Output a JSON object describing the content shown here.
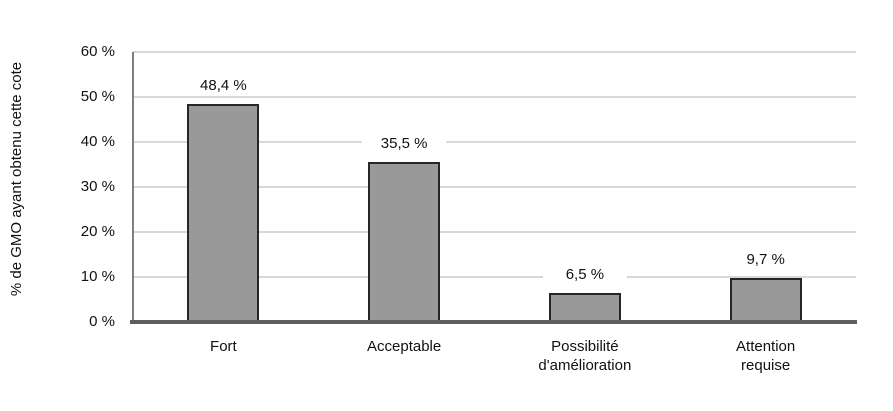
{
  "chart_data": {
    "type": "bar",
    "title": "",
    "xlabel": "",
    "ylabel": "% de GMO ayant obtenu cette cote",
    "categories": [
      "Fort",
      "Acceptable",
      "Possibilité\nd'amélioration",
      "Attention\nrequise"
    ],
    "values": [
      48.4,
      35.5,
      6.5,
      9.7
    ],
    "value_labels": [
      "48,4 %",
      "35,5 %",
      "6,5 %",
      "9,7 %"
    ],
    "ylim": [
      0,
      60
    ],
    "ytick_step": 10,
    "ytick_labels": [
      "0 %",
      "10 %",
      "20 %",
      "30 %",
      "40 %",
      "50 %",
      "60 %"
    ],
    "grid": true,
    "legend": false,
    "colors": {
      "bar_fill": "#999999",
      "bar_border": "#262626",
      "gridline": "#d9d9d9",
      "y_axis_line": "#7f7f7f",
      "baseline": "#5f5f5f",
      "text": "#111111",
      "background": "#ffffff"
    }
  }
}
